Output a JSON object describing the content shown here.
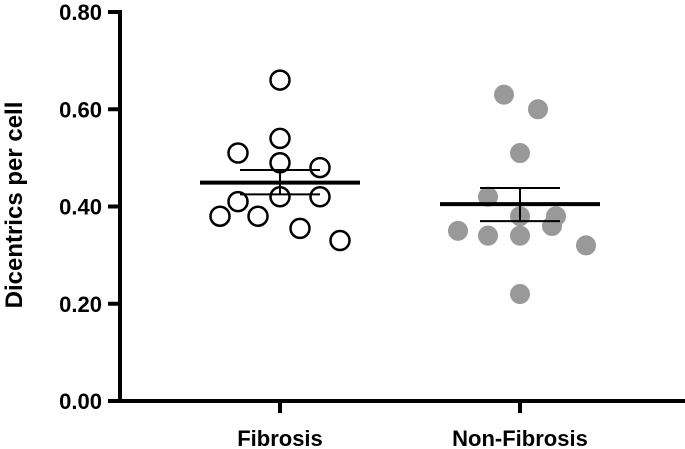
{
  "chart_data": {
    "type": "scatter",
    "title": "",
    "xlabel": "",
    "ylabel": "Dicentrics per cell",
    "ylim": [
      0,
      0.8
    ],
    "y_ticks": [
      "0.00",
      "0.20",
      "0.40",
      "0.60",
      "0.80"
    ],
    "categories": [
      "Fibrosis",
      "Non-Fibrosis"
    ],
    "grid": false,
    "legend": "none",
    "series": [
      {
        "category": "Fibrosis",
        "marker": "open-circle",
        "color": "#000000",
        "values": [
          0.66,
          0.54,
          0.51,
          0.49,
          0.48,
          0.42,
          0.42,
          0.41,
          0.38,
          0.38,
          0.355,
          0.33
        ],
        "jitter": [
          0.0,
          0.0,
          -0.42,
          0.0,
          0.4,
          0.0,
          0.4,
          -0.42,
          -0.6,
          -0.22,
          0.2,
          0.6
        ],
        "mean": 0.449,
        "sem_low": 0.425,
        "sem_high": 0.475
      },
      {
        "category": "Non-Fibrosis",
        "marker": "filled-circle",
        "color": "#999999",
        "values": [
          0.63,
          0.6,
          0.51,
          0.42,
          0.38,
          0.38,
          0.36,
          0.35,
          0.34,
          0.34,
          0.32,
          0.22
        ],
        "jitter": [
          -0.16,
          0.18,
          0.0,
          -0.32,
          0.0,
          0.36,
          0.32,
          -0.62,
          -0.32,
          0.0,
          0.66,
          0.0
        ],
        "mean": 0.405,
        "sem_low": 0.37,
        "sem_high": 0.438
      }
    ]
  }
}
